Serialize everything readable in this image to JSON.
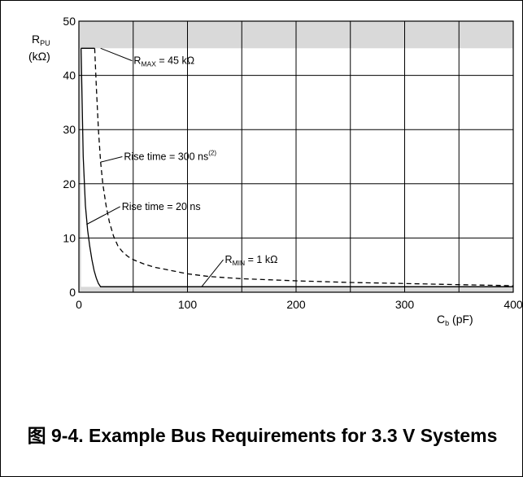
{
  "chart_data": {
    "type": "line",
    "x_ticks": [
      "0",
      "100",
      "200",
      "300",
      "400"
    ],
    "y_ticks": [
      "0",
      "10",
      "20",
      "30",
      "40",
      "50"
    ],
    "xlim": [
      0,
      400
    ],
    "ylim": [
      0,
      50
    ],
    "grid": true,
    "y_axis_label": {
      "main": "R",
      "sub": "PU",
      "unit": "(kΩ)"
    },
    "x_axis_label": {
      "main": "C",
      "sub": "b",
      "unit": " (pF)"
    },
    "colors": {
      "shaded_region": "#d9d9d9",
      "grid": "#000000",
      "line": "#000000"
    },
    "series": [
      {
        "style": "dashed",
        "x": [
          14.5,
          16,
          18,
          20,
          22,
          25,
          28,
          32,
          36,
          40,
          45,
          50,
          60,
          70,
          80,
          100,
          120,
          150,
          200,
          250,
          300,
          350,
          400
        ],
        "y": [
          45,
          38,
          30,
          24,
          20,
          16,
          13,
          10.3,
          8.5,
          7.5,
          6.6,
          6,
          5.2,
          4.6,
          4.2,
          3.4,
          2.9,
          2.5,
          2.1,
          1.8,
          1.6,
          1.4,
          1.2
        ]
      },
      {
        "style": "solid",
        "x": [
          2,
          4,
          6,
          8,
          10,
          12,
          14,
          16,
          18,
          20,
          22,
          400
        ],
        "y": [
          45,
          25,
          16,
          11.5,
          8.5,
          6,
          4,
          2.6,
          1.6,
          1,
          1,
          1
        ]
      }
    ],
    "reference_lines": [
      {
        "y": 45,
        "x_range": [
          2,
          14.5
        ]
      },
      {
        "y": 1,
        "x_range": [
          20,
          400
        ]
      }
    ],
    "annotations": [
      {
        "main": "R",
        "sub": "MAX",
        "rest": " = 45 kΩ",
        "sup": "",
        "target": [
          20,
          45
        ],
        "text_at": [
          49,
          42.7
        ]
      },
      {
        "main": "Rise time = 300 ns",
        "sub": "",
        "rest": "",
        "sup": "(2)",
        "target": [
          20,
          24
        ],
        "text_at": [
          40,
          25
        ]
      },
      {
        "main": "Rise time = 20 ns",
        "sub": "",
        "rest": "",
        "sup": "",
        "target": [
          7,
          12.5
        ],
        "text_at": [
          38,
          15.8
        ]
      },
      {
        "main": "R",
        "sub": "MIN",
        "rest": " = 1 kΩ",
        "sup": "",
        "target": [
          113,
          1
        ],
        "text_at": [
          133,
          6
        ]
      }
    ]
  },
  "caption": "图 9-4. Example Bus Requirements for 3.3 V Systems"
}
